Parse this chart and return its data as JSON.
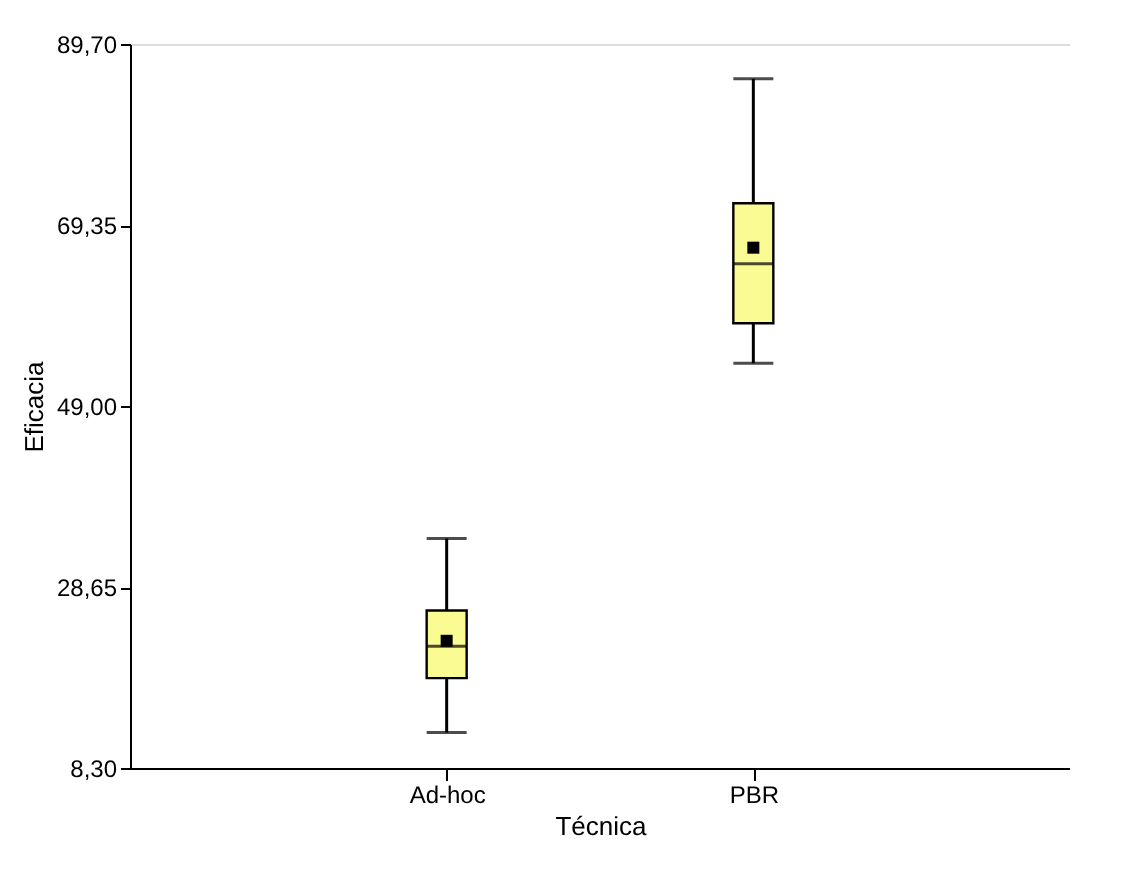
{
  "chart_data": {
    "type": "box",
    "xlabel": "Técnica",
    "ylabel": "Eficacia",
    "categories": [
      "Ad-hoc",
      "PBR"
    ],
    "boxes": [
      {
        "low": 12.3,
        "q1": 18.4,
        "median": 22.0,
        "q3": 26.0,
        "high": 34.1,
        "mean": 22.6
      },
      {
        "low": 53.8,
        "q1": 58.3,
        "median": 65.0,
        "q3": 71.8,
        "high": 85.8,
        "mean": 66.8
      }
    ],
    "color": "#fbfb93",
    "ylim": [
      8.3,
      89.7
    ],
    "yticks": [
      {
        "value": 8.3,
        "label": "8,30"
      },
      {
        "value": 28.65,
        "label": "28,65"
      },
      {
        "value": 49.0,
        "label": "49,00"
      },
      {
        "value": 69.35,
        "label": "69,35"
      },
      {
        "value": 89.7,
        "label": "89,70"
      }
    ],
    "grid": false
  }
}
